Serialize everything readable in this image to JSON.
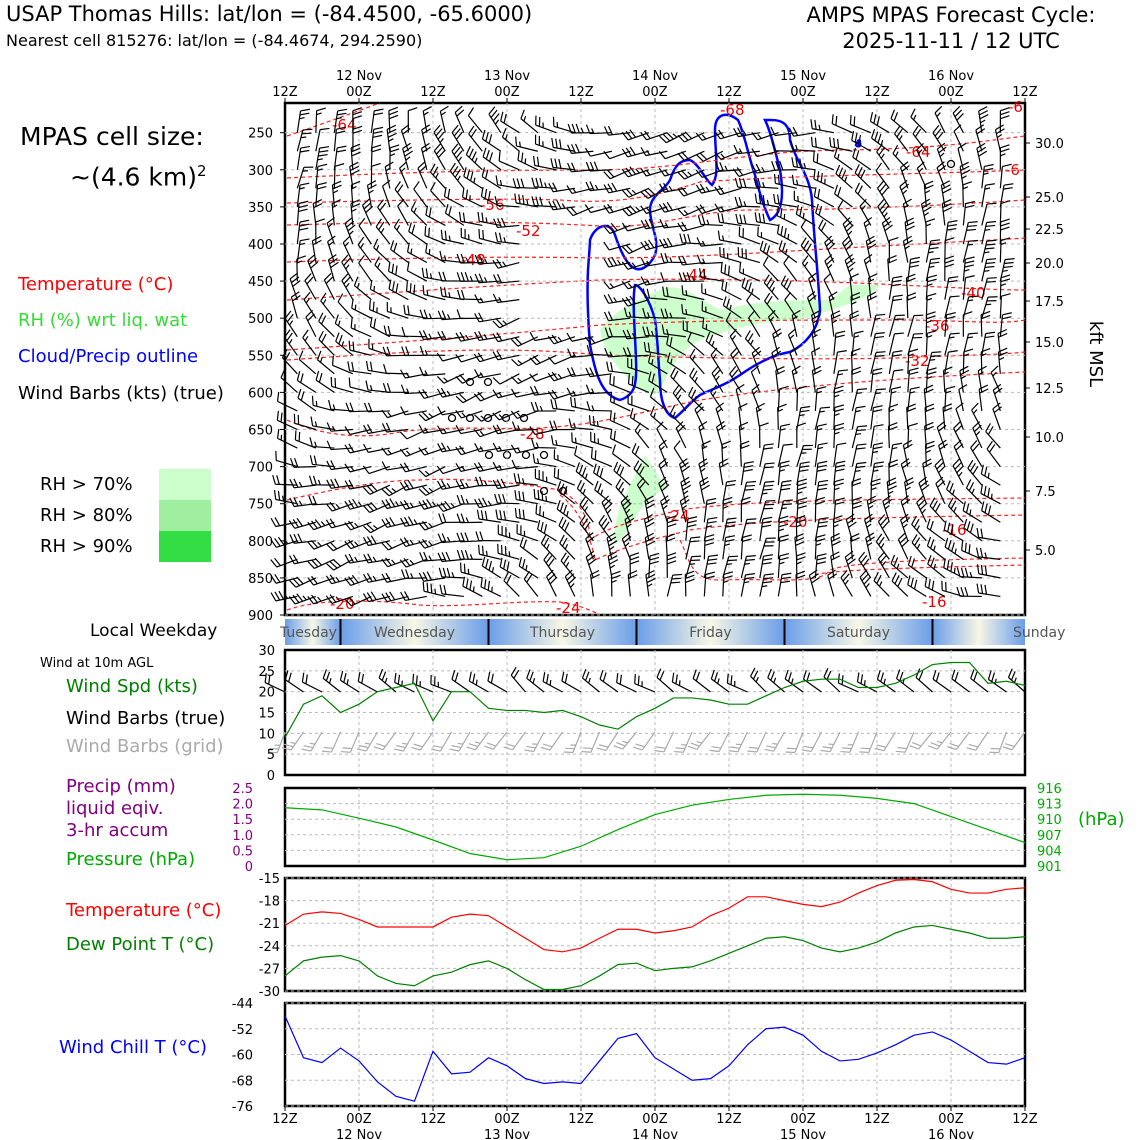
{
  "header": {
    "title_left": "USAP Thomas Hills: lat/lon = (-84.4500, -65.6000)",
    "subtitle_left": "Nearest cell 815276: lat/lon = (-84.4674, 294.2590)",
    "title_right_line1": "AMPS MPAS Forecast Cycle:",
    "title_right_line2": "2025-11-11 / 12 UTC"
  },
  "side_panel": {
    "cell_size_line1": "MPAS cell size:",
    "cell_size_line2": "~(4.6 km)",
    "cell_size_exp": "2",
    "legend": [
      {
        "label": "Temperature (°C)",
        "color": "#ff0000"
      },
      {
        "label": "RH (%) wrt liq. wat",
        "color": "#33dd33"
      },
      {
        "label": "Cloud/Precip outline",
        "color": "#0000ff"
      },
      {
        "label": "Wind Barbs (kts) (true)",
        "color": "#000000"
      }
    ],
    "rh_legend": [
      {
        "label": "RH > 70%",
        "color": "#ccffcc"
      },
      {
        "label": "RH > 80%",
        "color": "#a0eea0"
      },
      {
        "label": "RH > 90%",
        "color": "#33dd44"
      }
    ],
    "weekday_label": "Local Weekday",
    "wind_10m_label": "Wind at 10m AGL",
    "wind_panel_legend": [
      {
        "label": "Wind Spd (kts)",
        "color": "#008000"
      },
      {
        "label": "Wind Barbs (true)",
        "color": "#000000"
      },
      {
        "label": "Wind Barbs (grid)",
        "color": "#aaaaaa"
      }
    ],
    "precip_legend": [
      {
        "label": "Precip (mm)",
        "color": "#800080"
      },
      {
        "label": "liquid eqiv.",
        "color": "#800080"
      },
      {
        "label": "3-hr accum",
        "color": "#800080"
      },
      {
        "label": "Pressure (hPa)",
        "color": "#00aa00"
      }
    ],
    "temp_legend": [
      {
        "label": "Temperature (°C)",
        "color": "#ff0000"
      },
      {
        "label": "Dew Point T (°C)",
        "color": "#008000"
      }
    ],
    "windchill_label": "Wind Chill T (°C)"
  },
  "chart_data": [
    {
      "type": "time-height",
      "name": "upper-air cross section",
      "time_axis_top": {
        "tick_labels": [
          "12Z",
          "00Z",
          "12Z",
          "00Z",
          "12Z",
          "00Z",
          "12Z",
          "00Z",
          "12Z",
          "00Z",
          "12Z"
        ],
        "date_labels": [
          "12 Nov",
          "13 Nov",
          "14 Nov",
          "15 Nov",
          "16 Nov"
        ]
      },
      "pressure_ticks": [
        250,
        300,
        350,
        400,
        450,
        500,
        550,
        600,
        650,
        700,
        750,
        800,
        850,
        900
      ],
      "ylim": [
        900,
        210
      ],
      "kft_ticks": [
        30.0,
        25.0,
        22.5,
        20.0,
        17.5,
        15.0,
        12.5,
        10.0,
        7.5,
        5.0
      ],
      "right_ylabel": "kft MSL",
      "temperature_labels": [
        "-64",
        "-68",
        "-64",
        "-56",
        "-52",
        "-48",
        "-44",
        "-40",
        "-36",
        "-32",
        "-28",
        "-24",
        "-20",
        "-16",
        "-20",
        "-24",
        "-16",
        "-6",
        "-6"
      ]
    },
    {
      "type": "band",
      "name": "local weekday",
      "days": [
        "Tuesday",
        "Wednesday",
        "Thursday",
        "Friday",
        "Saturday",
        "Sunday"
      ]
    },
    {
      "type": "line",
      "name": "10m wind speed",
      "ylabel": "Wind Spd (kts)",
      "ylim": [
        0,
        30
      ],
      "yticks": [
        0,
        5,
        10,
        15,
        20,
        25,
        30
      ],
      "x_hours": [
        0,
        3,
        6,
        9,
        12,
        15,
        18,
        21,
        24,
        27,
        30,
        33,
        36,
        39,
        42,
        45,
        48,
        51,
        54,
        57,
        60,
        63,
        66,
        69,
        72,
        75,
        78,
        81,
        84,
        87,
        90,
        93,
        96,
        99,
        102,
        105,
        108,
        111,
        114,
        117,
        120
      ],
      "values": [
        9,
        17,
        19,
        15,
        17,
        20,
        21,
        22,
        13,
        20,
        20,
        16,
        15.5,
        15.5,
        15,
        15.5,
        14,
        12,
        11,
        14,
        16,
        18.5,
        18.5,
        18,
        17,
        17,
        19,
        21,
        22.5,
        23,
        23,
        21,
        21,
        22,
        24,
        26.5,
        27,
        27,
        22,
        22.5,
        21.5
      ]
    },
    {
      "type": "line",
      "name": "surface pressure",
      "ylabel": "Pressure (hPa)",
      "ylim": [
        901,
        916
      ],
      "yticks_right": [
        901,
        904,
        907,
        910,
        913,
        916
      ],
      "yticks_left_precip": [
        "0",
        "0.5",
        "1.0",
        "1.5",
        "2.0",
        "2.5"
      ],
      "x_hours": [
        0,
        6,
        12,
        18,
        24,
        30,
        36,
        42,
        48,
        54,
        60,
        66,
        72,
        78,
        84,
        90,
        96,
        102,
        108,
        114,
        120
      ],
      "values": [
        912.2,
        911.8,
        910.2,
        908.5,
        906,
        903.4,
        902.2,
        902.6,
        904.8,
        908,
        910.9,
        912.7,
        913.8,
        914.6,
        914.8,
        914.6,
        914,
        913,
        910.5,
        908,
        905.5
      ]
    },
    {
      "type": "line",
      "name": "surface temperature and dew point",
      "ylim": [
        -30,
        -15
      ],
      "yticks": [
        "-15",
        "-18",
        "-21",
        "-24",
        "-27",
        "-30"
      ],
      "x_hours": [
        0,
        3,
        6,
        9,
        12,
        15,
        18,
        21,
        24,
        27,
        30,
        33,
        36,
        39,
        42,
        45,
        48,
        51,
        54,
        57,
        60,
        63,
        66,
        69,
        72,
        75,
        78,
        81,
        84,
        87,
        90,
        93,
        96,
        99,
        102,
        105,
        108,
        111,
        114,
        117,
        120
      ],
      "series": [
        {
          "name": "Temperature",
          "color": "#ff0000",
          "values": [
            -21.3,
            -19.8,
            -19.5,
            -19.7,
            -20.5,
            -21.5,
            -21.5,
            -21.5,
            -21.5,
            -20.2,
            -19.8,
            -20,
            -21.5,
            -23,
            -24.5,
            -24.8,
            -24.3,
            -23,
            -21.8,
            -21.8,
            -22.3,
            -22,
            -21.5,
            -20,
            -19,
            -17.5,
            -17.5,
            -18,
            -18.5,
            -18.8,
            -18.2,
            -17,
            -16,
            -15.3,
            -15.2,
            -15.5,
            -16.5,
            -17,
            -17,
            -16.5,
            -16.3
          ]
        },
        {
          "name": "Dew Point",
          "color": "#008000",
          "values": [
            -28,
            -26,
            -25.5,
            -25.3,
            -26,
            -28,
            -29,
            -29.3,
            -28,
            -27.5,
            -26.5,
            -26,
            -27,
            -28.5,
            -29.8,
            -29.8,
            -29.3,
            -28,
            -26.5,
            -26.3,
            -27.3,
            -27,
            -26.8,
            -26,
            -25,
            -24,
            -23,
            -22.8,
            -23.3,
            -24.3,
            -24.8,
            -24.3,
            -23.5,
            -22.3,
            -21.5,
            -21.3,
            -21.8,
            -22.3,
            -23,
            -23,
            -22.8
          ]
        }
      ]
    },
    {
      "type": "line",
      "name": "wind chill temperature",
      "ylabel": "Wind Chill T (°C)",
      "ylim": [
        -76,
        -44
      ],
      "yticks": [
        "-44",
        "-52",
        "-60",
        "-68",
        "-76"
      ],
      "x_hours": [
        0,
        3,
        6,
        9,
        12,
        15,
        18,
        21,
        24,
        27,
        30,
        33,
        36,
        39,
        42,
        45,
        48,
        51,
        54,
        57,
        60,
        63,
        66,
        69,
        72,
        75,
        78,
        81,
        84,
        87,
        90,
        93,
        96,
        99,
        102,
        105,
        108,
        111,
        114,
        117,
        120
      ],
      "values": [
        -48,
        -61,
        -62.5,
        -58,
        -62,
        -68.5,
        -73,
        -74.5,
        -59,
        -66,
        -65.5,
        -61,
        -63.5,
        -67.5,
        -69,
        -68.5,
        -69,
        -62,
        -55,
        -53.5,
        -61,
        -64.5,
        -68,
        -67.5,
        -63.5,
        -57,
        -52,
        -51.5,
        -54,
        -59,
        -62,
        -61.5,
        -59.5,
        -57,
        -54,
        -53,
        -55.5,
        -59,
        -62.5,
        -63,
        -61
      ]
    }
  ],
  "bottom_axis": {
    "tick_labels": [
      "12Z",
      "00Z",
      "12Z",
      "00Z",
      "12Z",
      "00Z",
      "12Z",
      "00Z",
      "12Z",
      "00Z",
      "12Z"
    ],
    "date_labels": [
      "12 Nov",
      "13 Nov",
      "14 Nov",
      "15 Nov",
      "16 Nov"
    ]
  },
  "pressure_units_label": "(hPa)"
}
